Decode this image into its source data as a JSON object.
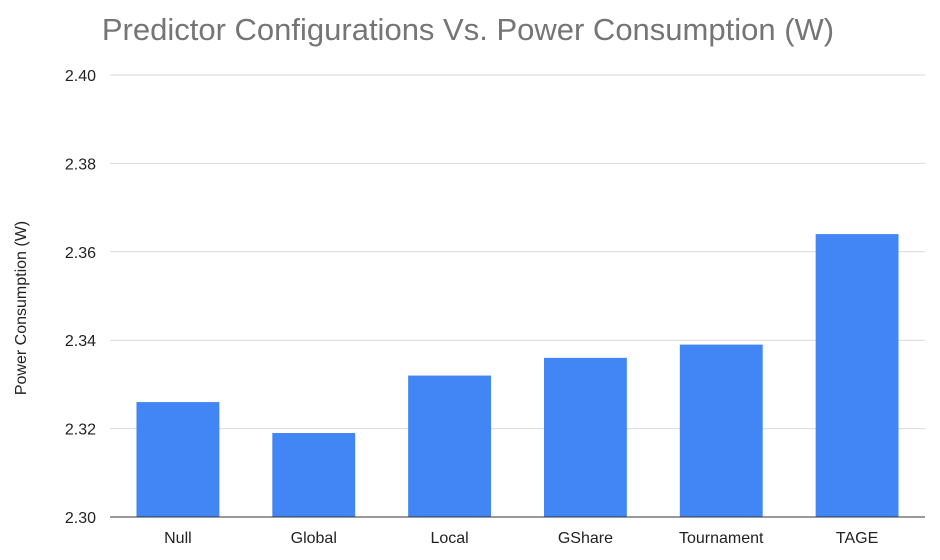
{
  "chart_data": {
    "type": "bar",
    "title": "Predictor Configurations Vs. Power Consumption (W)",
    "xlabel": "",
    "ylabel": "Power Consumption (W)",
    "categories": [
      "Null",
      "Global",
      "Local",
      "GShare",
      "Tournament",
      "TAGE"
    ],
    "values": [
      2.326,
      2.319,
      2.332,
      2.336,
      2.339,
      2.364
    ],
    "ylim": [
      2.3,
      2.4
    ],
    "yticks": [
      "2.30",
      "2.32",
      "2.34",
      "2.36",
      "2.38",
      "2.40"
    ],
    "grid": true,
    "bar_color": "#4285f4"
  }
}
